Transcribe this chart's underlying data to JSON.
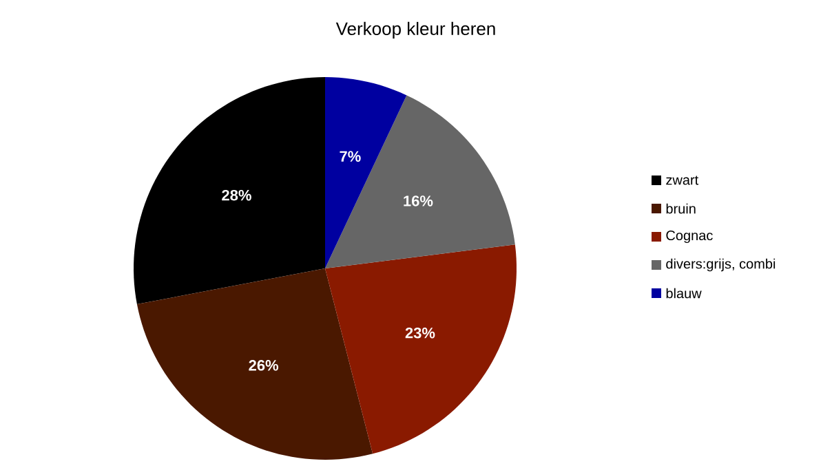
{
  "chart_data": {
    "type": "pie",
    "title": "Verkoop kleur heren",
    "categories": [
      "zwart",
      "bruin",
      "Cognac",
      "divers:grijs, combi",
      "blauw"
    ],
    "values": [
      28,
      26,
      23,
      16,
      7
    ],
    "colors": [
      "#000000",
      "#4a1800",
      "#8a1a00",
      "#666666",
      "#0000a0"
    ],
    "value_labels": [
      "28%",
      "26%",
      "23%",
      "16%",
      "7%"
    ],
    "legend": "right"
  }
}
